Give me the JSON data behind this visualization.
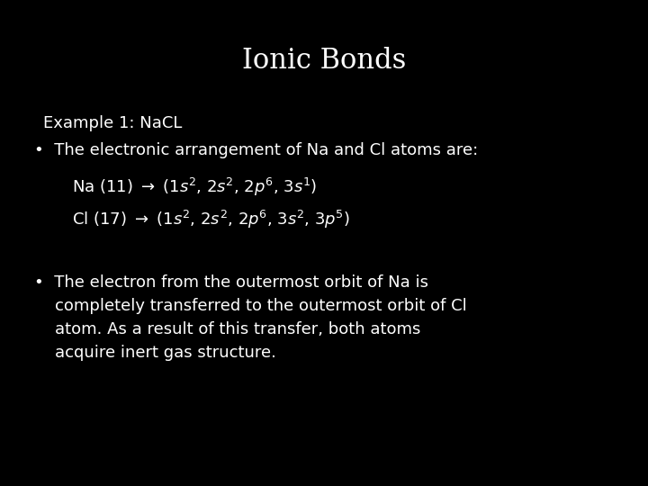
{
  "background_color": "#000000",
  "text_color": "#ffffff",
  "title": "Ionic Bonds",
  "title_fontsize": 22,
  "title_font": "serif",
  "example_label": "Example 1: NaCL",
  "example_fontsize": 13,
  "body_fontsize": 13,
  "body_font": "sans-serif",
  "bullet1_text": "•  The electronic arrangement of Na and Cl atoms are:",
  "bullet2_line1": "•  The electron from the outermost orbit of Na is",
  "bullet2_line2": "    completely transferred to the outermost orbit of Cl",
  "bullet2_line3": "    atom. As a result of this transfer, both atoms",
  "bullet2_line4": "    acquire inert gas structure."
}
